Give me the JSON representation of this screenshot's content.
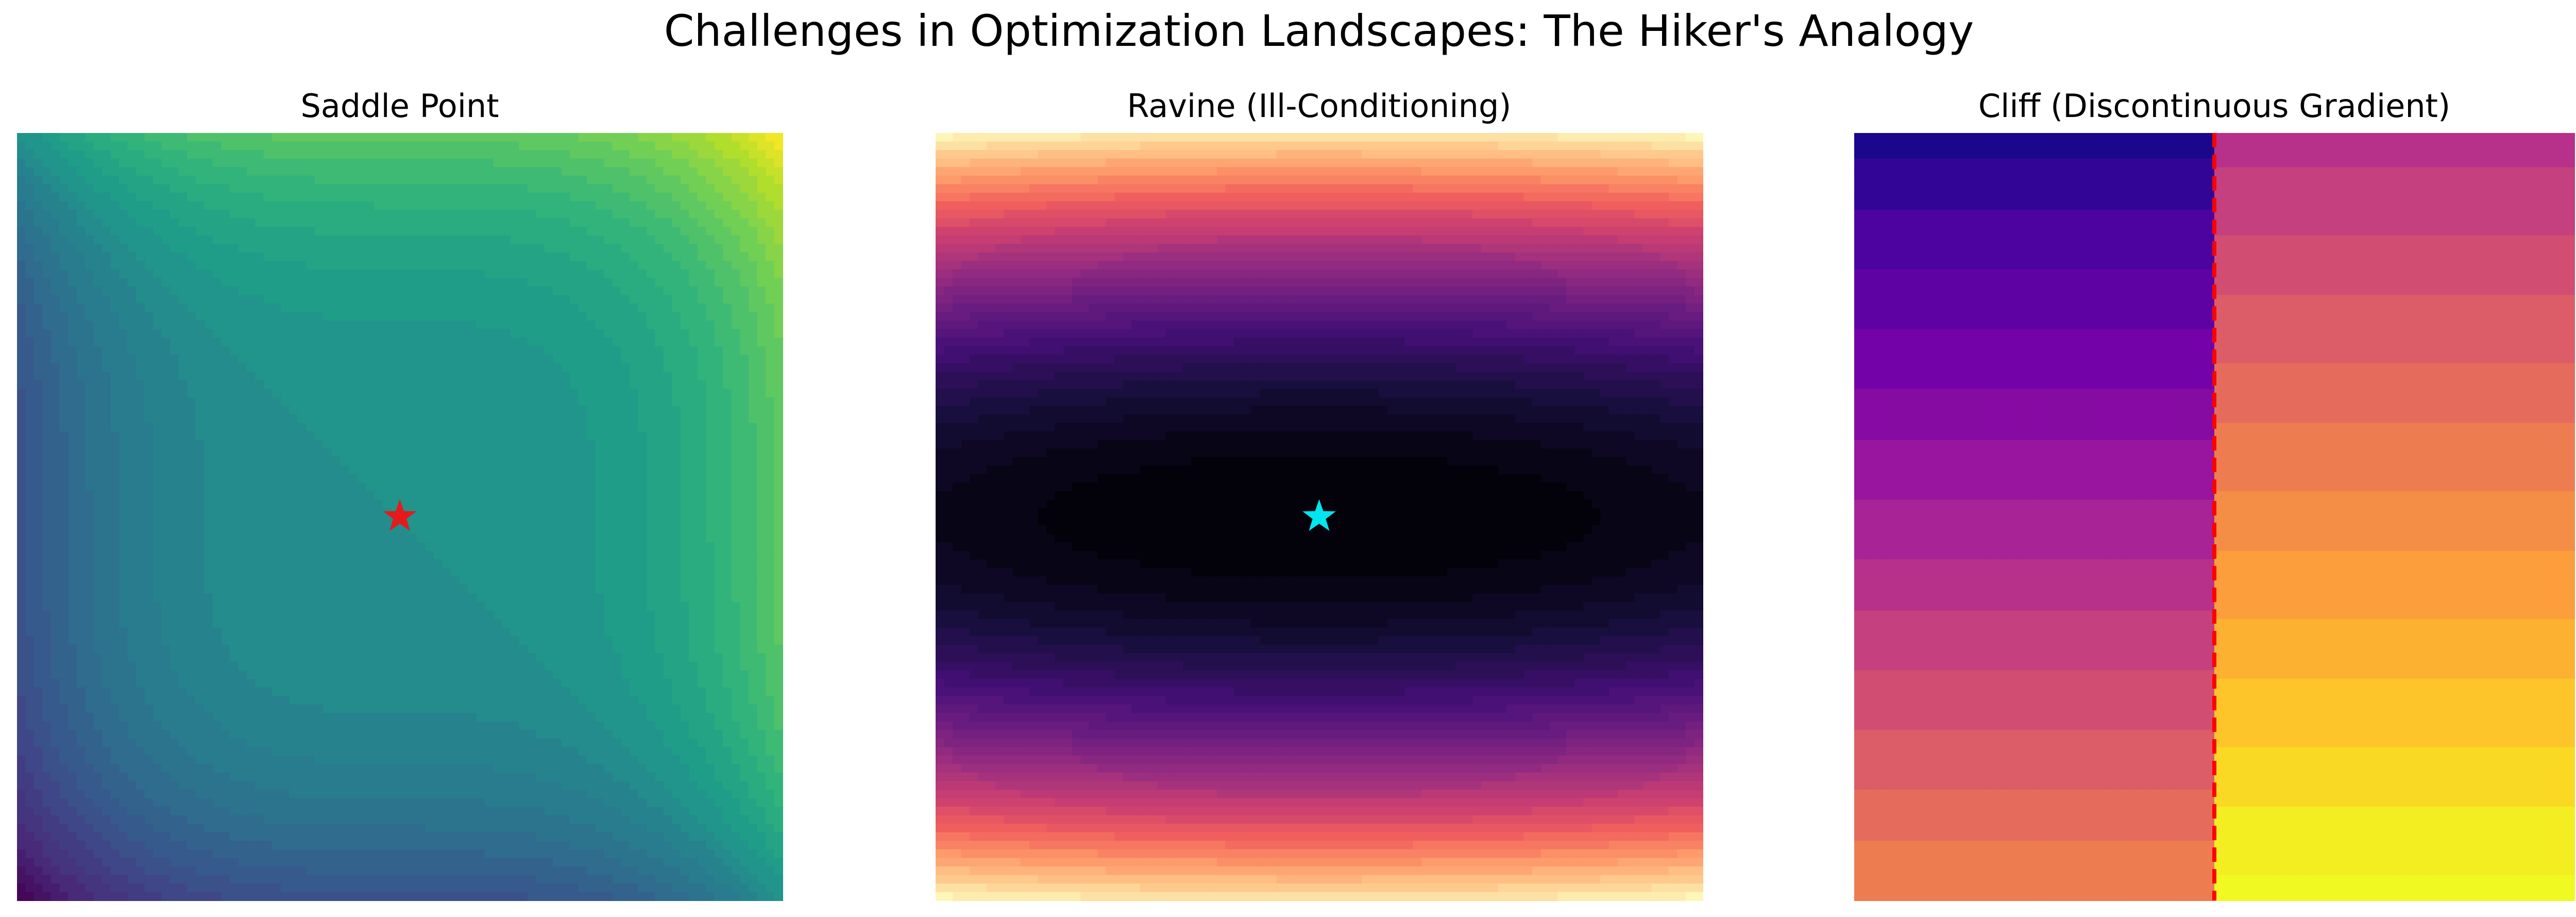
{
  "title": "Challenges in Optimization Landscapes: The Hiker's Analogy",
  "chart_data": [
    {
      "type": "contour",
      "title": "Saddle Point",
      "colormap": "viridis",
      "xlim": [
        -2,
        2
      ],
      "ylim": [
        -2,
        2
      ],
      "marker": {
        "x": 0,
        "y": 0,
        "color": "#e41a1c"
      }
    },
    {
      "type": "contour",
      "title": "Ravine (Ill-Conditioning)",
      "colormap": "magma",
      "xlim": [
        -2,
        2
      ],
      "ylim": [
        -2,
        2
      ],
      "marker": {
        "x": 0,
        "y": 0,
        "color": "#00e5ee"
      }
    },
    {
      "type": "contour",
      "title": "Cliff (Discontinuous Gradient)",
      "colormap": "plasma",
      "xlim": [
        -2,
        2
      ],
      "ylim": [
        -2,
        2
      ],
      "vline": {
        "x": 0,
        "color": "#ff0000"
      }
    }
  ]
}
